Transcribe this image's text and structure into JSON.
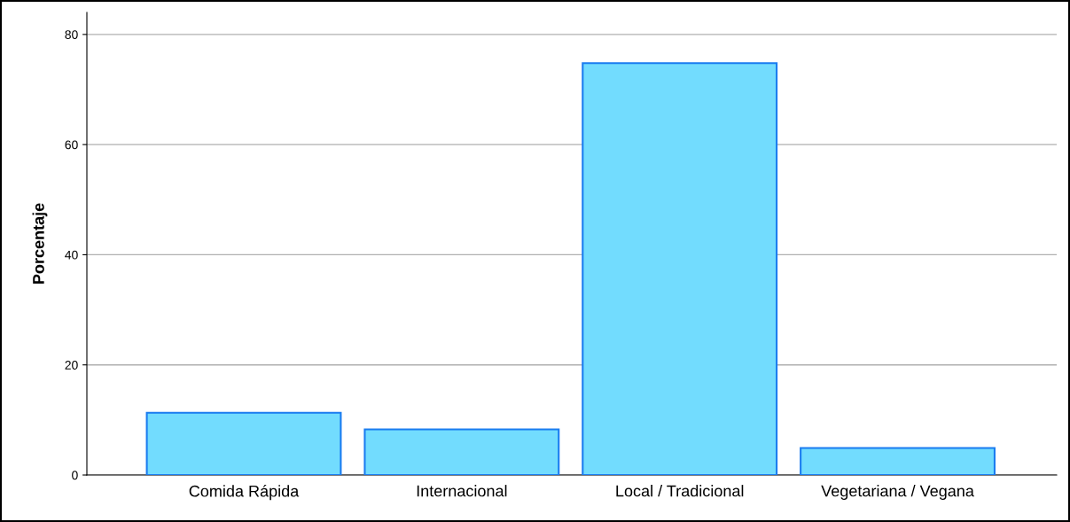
{
  "chart_data": {
    "type": "bar",
    "ylabel": "Porcentaje",
    "categories": [
      "Comida Rápida",
      "Internacional",
      "Local / Tradicional",
      "Vegetariana / Vegana"
    ],
    "values": [
      11.3,
      8.3,
      74.8,
      4.9
    ],
    "color": "#72dcfe",
    "ylim": [
      0,
      84
    ],
    "yticks": [
      0,
      20,
      40,
      60,
      80
    ],
    "grid": "y"
  }
}
